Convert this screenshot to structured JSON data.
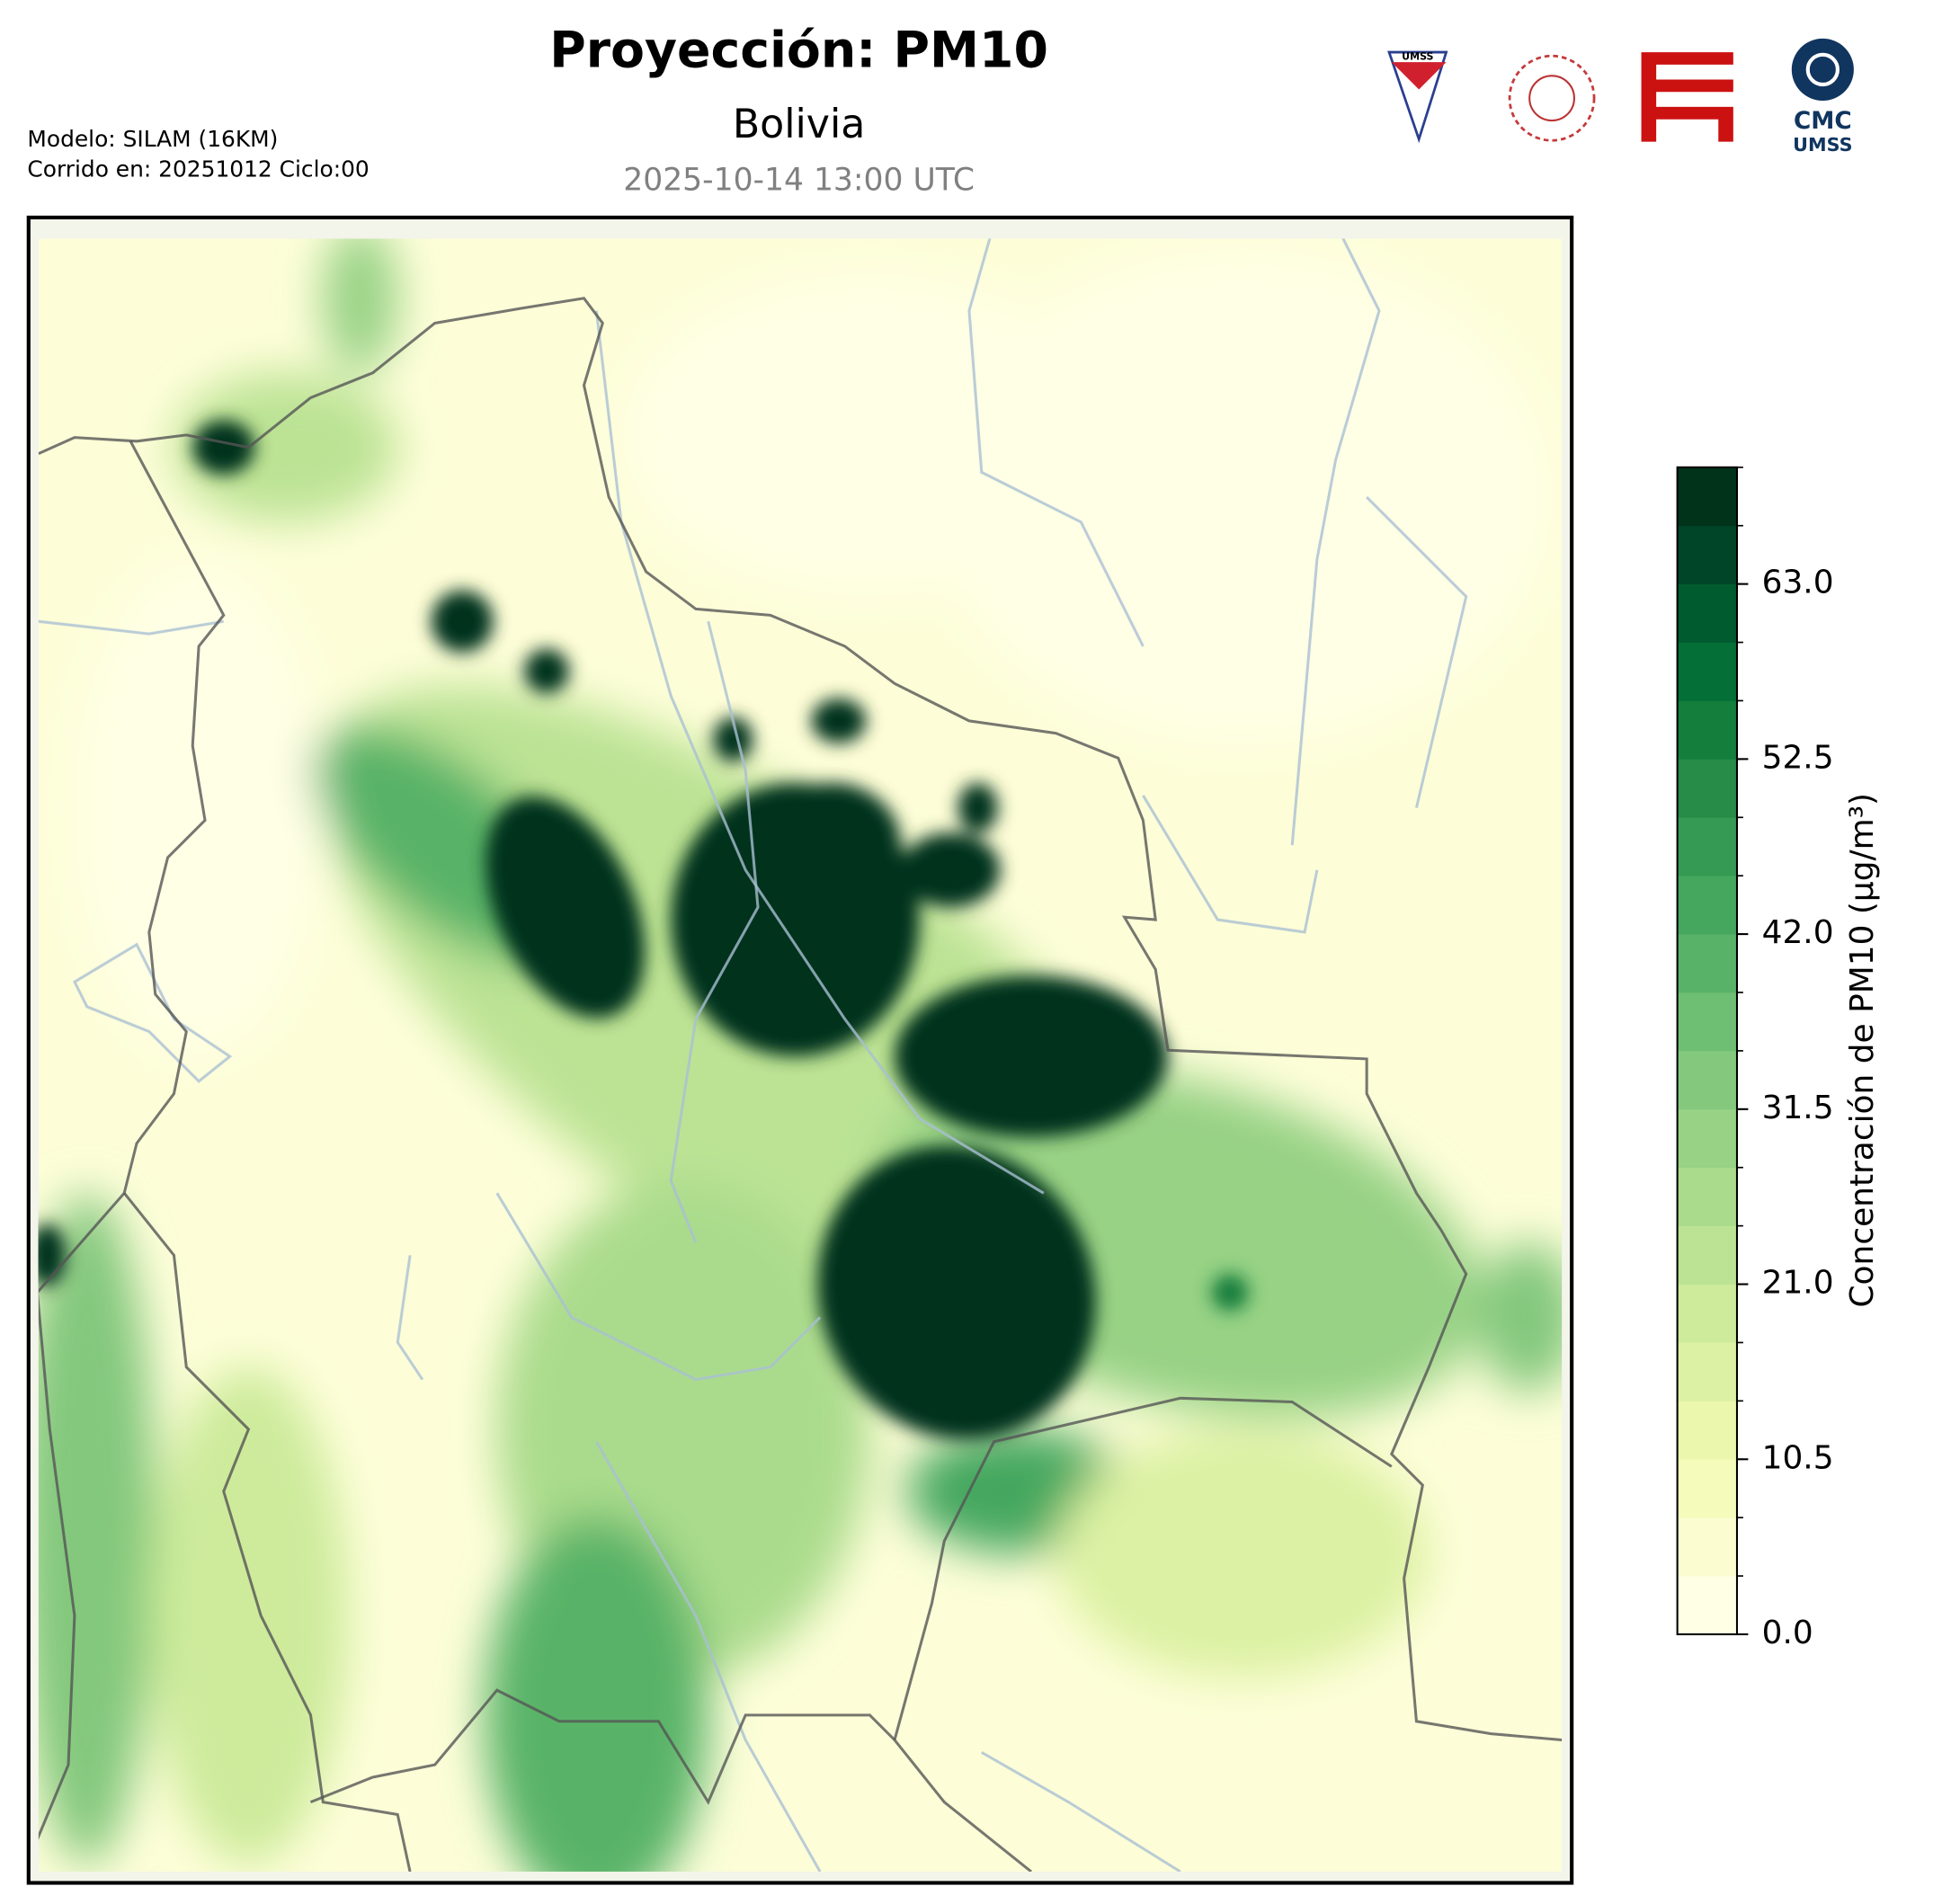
{
  "header": {
    "title": "Proyección: PM10",
    "subtitle": "Bolivia",
    "date": "2025-10-14 13:00 UTC",
    "model": "Modelo: SILAM (16KM)",
    "run": "Corrido en: 20251012 Ciclo:00"
  },
  "logos": {
    "shield": "UMSS",
    "cmc": "CMC",
    "cmc_sub": "UMSS"
  },
  "chart_data": {
    "type": "colorbar",
    "label": "Concentración de PM10 (µg/m³)",
    "ylim": [
      0,
      70
    ],
    "yticks": [
      {
        "value": 0,
        "label": "0.0"
      },
      10.5,
      {
        "value": 21,
        "label": "21.0"
      },
      31.5,
      {
        "value": 42,
        "label": "42.0"
      },
      52.5,
      {
        "value": 63,
        "label": "63.0"
      }
    ],
    "levels": [
      0,
      3.5,
      7,
      10.5,
      14,
      17.5,
      21,
      24.5,
      28,
      31.5,
      35,
      38.5,
      42,
      45.5,
      49,
      52.5,
      56,
      59.5,
      63,
      66.5,
      70
    ],
    "colors": [
      "#ffffe5",
      "#fbfdd0",
      "#f5fbbb",
      "#eaf7ac",
      "#dcf1a3",
      "#cdeb9b",
      "#bce394",
      "#aadb8c",
      "#97d285",
      "#83c87d",
      "#6ebe73",
      "#58b368",
      "#45a75e",
      "#359a53",
      "#268c48",
      "#147e3d",
      "#046f36",
      "#005c2e",
      "#004527",
      "#00331a"
    ]
  }
}
